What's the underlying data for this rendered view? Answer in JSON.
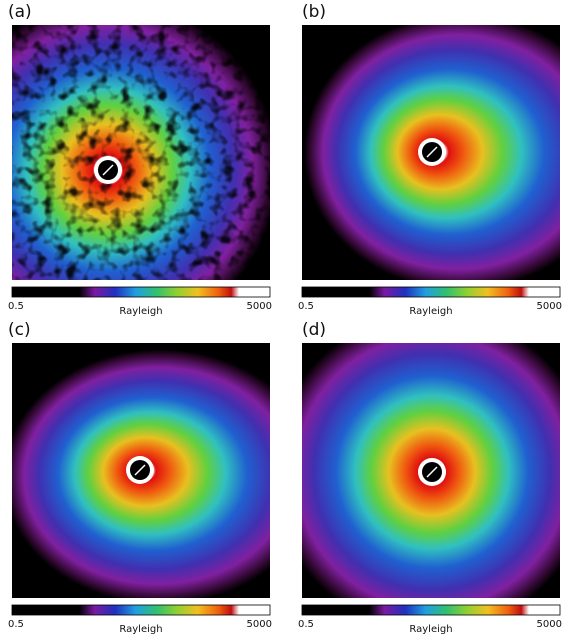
{
  "panels": [
    {
      "label": "(a)",
      "colorbar": {
        "min": 0.5,
        "max": 5000,
        "title": "Rayleigh"
      }
    },
    {
      "label": "(b)",
      "colorbar": {
        "min": 0.5,
        "max": 5000,
        "title": "Rayleigh"
      }
    },
    {
      "label": "(c)",
      "colorbar": {
        "min": 0.5,
        "max": 5000,
        "title": "Rayleigh"
      }
    },
    {
      "label": "(d)",
      "colorbar": {
        "min": 0.5,
        "max": 5000,
        "title": "Rayleigh"
      }
    }
  ]
}
